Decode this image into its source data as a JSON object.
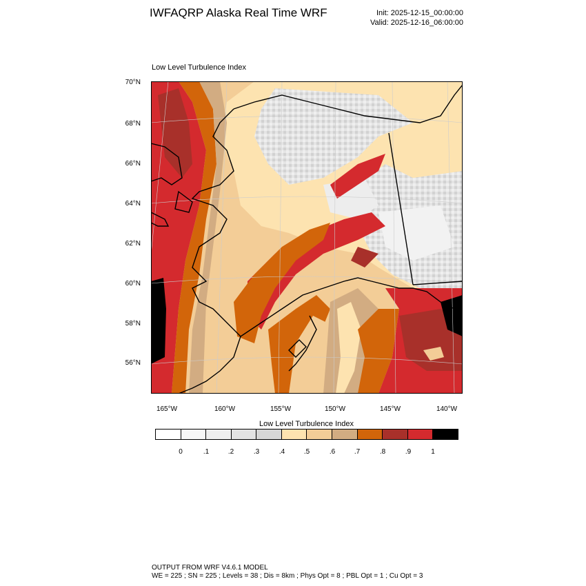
{
  "header": {
    "title": "IWFAQRP Alaska Real Time WRF",
    "init": "Init: 2025-12-15_00:00:00",
    "valid": "Valid: 2025-12-16_06:00:00"
  },
  "plot": {
    "title": "Low Level Turbulence Index",
    "lat_labels": [
      "70°N",
      "68°N",
      "66°N",
      "64°N",
      "62°N",
      "60°N",
      "58°N",
      "56°N"
    ],
    "lon_labels": [
      "165°W",
      "160°W",
      "155°W",
      "150°W",
      "145°W",
      "140°W"
    ]
  },
  "colorbar": {
    "title": "Low Level Turbulence Index",
    "colors": [
      "#ffffff",
      "#f7f7f7",
      "#efefef",
      "#e3e3e3",
      "#d6d6d6",
      "#fde3b0",
      "#f3cd97",
      "#d2ac82",
      "#d2650a",
      "#a8302a",
      "#d42a2e",
      "#000000"
    ],
    "labels": [
      "0",
      ".1",
      ".2",
      ".3",
      ".4",
      ".5",
      ".6",
      ".7",
      ".8",
      ".9",
      "1"
    ]
  },
  "footer": {
    "line1": "OUTPUT FROM WRF V4.6.1 MODEL",
    "line2": "WE = 225 ; SN = 225 ; Levels = 38 ; Dis = 8km ; Phys Opt = 8 ; PBL Opt = 1 ; Cu Opt = 3"
  }
}
